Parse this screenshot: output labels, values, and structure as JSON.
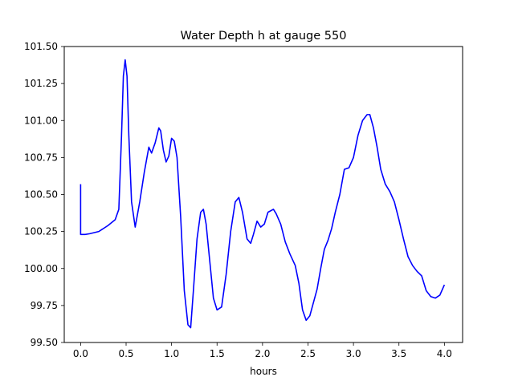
{
  "chart_data": {
    "type": "line",
    "title": "Water Depth h at gauge 550",
    "xlabel": "hours",
    "ylabel": "",
    "xlim": [
      -0.18,
      4.2
    ],
    "ylim": [
      99.5,
      101.5
    ],
    "xticks": [
      0.0,
      0.5,
      1.0,
      1.5,
      2.0,
      2.5,
      3.0,
      3.5,
      4.0
    ],
    "xtick_labels": [
      "0.0",
      "0.5",
      "1.0",
      "1.5",
      "2.0",
      "2.5",
      "3.0",
      "3.5",
      "4.0"
    ],
    "yticks": [
      99.5,
      99.75,
      100.0,
      100.25,
      100.5,
      100.75,
      101.0,
      101.25,
      101.5
    ],
    "ytick_labels": [
      "99.50",
      "99.75",
      "100.00",
      "100.25",
      "100.50",
      "100.75",
      "101.00",
      "101.25",
      "101.50"
    ],
    "grid": false,
    "series": [
      {
        "color": "#0000ff",
        "x": [
          0.0,
          0.0,
          0.05,
          0.1,
          0.2,
          0.3,
          0.38,
          0.42,
          0.45,
          0.47,
          0.49,
          0.51,
          0.53,
          0.56,
          0.6,
          0.65,
          0.7,
          0.75,
          0.78,
          0.82,
          0.86,
          0.88,
          0.91,
          0.94,
          0.97,
          1.0,
          1.03,
          1.06,
          1.1,
          1.14,
          1.18,
          1.21,
          1.24,
          1.28,
          1.32,
          1.35,
          1.38,
          1.42,
          1.46,
          1.5,
          1.55,
          1.6,
          1.65,
          1.7,
          1.74,
          1.78,
          1.83,
          1.87,
          1.9,
          1.94,
          1.98,
          2.02,
          2.06,
          2.12,
          2.15,
          2.2,
          2.25,
          2.3,
          2.36,
          2.4,
          2.44,
          2.48,
          2.52,
          2.56,
          2.6,
          2.64,
          2.68,
          2.72,
          2.76,
          2.8,
          2.85,
          2.9,
          2.95,
          3.0,
          3.05,
          3.1,
          3.15,
          3.18,
          3.22,
          3.26,
          3.3,
          3.35,
          3.4,
          3.45,
          3.5,
          3.55,
          3.6,
          3.65,
          3.7,
          3.75,
          3.8,
          3.85,
          3.9,
          3.95,
          4.0
        ],
        "y": [
          100.57,
          100.23,
          100.23,
          100.235,
          100.25,
          100.29,
          100.33,
          100.4,
          100.9,
          101.3,
          101.41,
          101.3,
          100.9,
          100.45,
          100.28,
          100.45,
          100.65,
          100.82,
          100.78,
          100.85,
          100.95,
          100.93,
          100.8,
          100.72,
          100.76,
          100.88,
          100.86,
          100.75,
          100.35,
          99.85,
          99.62,
          99.6,
          99.85,
          100.2,
          100.38,
          100.4,
          100.3,
          100.05,
          99.8,
          99.72,
          99.74,
          99.96,
          100.25,
          100.45,
          100.48,
          100.38,
          100.2,
          100.17,
          100.23,
          100.32,
          100.28,
          100.3,
          100.38,
          100.4,
          100.37,
          100.3,
          100.18,
          100.1,
          100.02,
          99.9,
          99.72,
          99.65,
          99.68,
          99.77,
          99.86,
          100.0,
          100.13,
          100.19,
          100.27,
          100.38,
          100.5,
          100.67,
          100.68,
          100.75,
          100.9,
          101.0,
          101.04,
          101.04,
          100.95,
          100.82,
          100.67,
          100.57,
          100.52,
          100.45,
          100.33,
          100.2,
          100.08,
          100.02,
          99.98,
          99.95,
          99.85,
          99.81,
          99.8,
          99.82,
          99.89
        ]
      }
    ]
  }
}
